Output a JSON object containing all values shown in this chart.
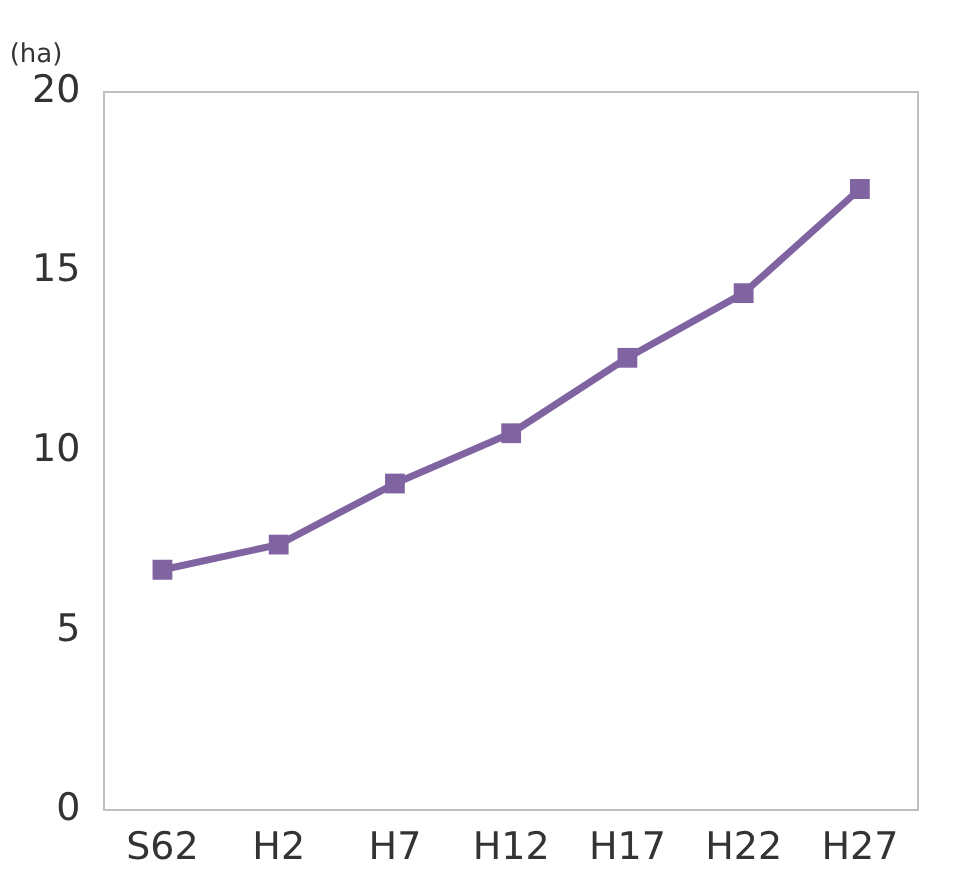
{
  "chart_data": {
    "type": "line",
    "ylabel": "(ha)",
    "categories": [
      "S62",
      "H2",
      "H7",
      "H12",
      "H17",
      "H22",
      "H27"
    ],
    "series": [
      {
        "color": "#8064a2",
        "values": [
          6.7,
          7.4,
          9.1,
          10.5,
          12.6,
          14.4,
          17.3
        ]
      }
    ],
    "ylim": [
      0,
      20
    ],
    "yticks": [
      0,
      5,
      10,
      15,
      20
    ],
    "grid": false,
    "legend": false,
    "marker": "square",
    "line_style": "solid"
  }
}
